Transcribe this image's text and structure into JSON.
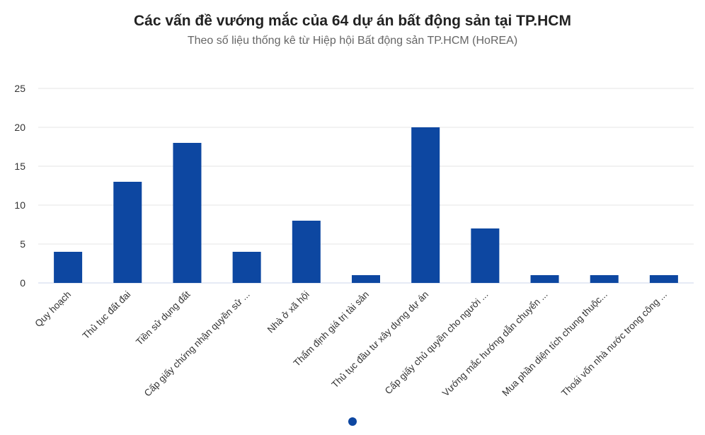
{
  "chart_data": {
    "type": "bar",
    "title": "Các vấn đề vướng mắc của 64 dự án bất động sản tại TP.HCM",
    "subtitle": "Theo số liệu thống kê từ Hiệp hội Bất động sản TP.HCM (HoREA)",
    "categories": [
      "Quy hoạch",
      "Thủ tục đất đai",
      "Tiền sử dụng đất",
      "Cấp giấy chứng nhận quyền sử ...",
      "Nhà ở xã hội",
      "Thẩm định giá trị tài sản",
      "Thủ tục đầu tư xây dựng dự án",
      "Cấp giấy chủ quyền cho người ...",
      "Vướng mắc hướng dẫn chuyển ...",
      "Mua phần diện tích chung thuộc...",
      "Thoái vốn nhà nước trong công ..."
    ],
    "values": [
      4,
      13,
      18,
      4,
      8,
      1,
      20,
      7,
      1,
      1,
      1
    ],
    "yticks": [
      0,
      5,
      10,
      15,
      20,
      25
    ],
    "ylim": [
      0,
      25
    ],
    "xlabel": "",
    "ylabel": "",
    "grid": true,
    "bar_color": "#0d47a1",
    "legend": "none"
  },
  "colors": {
    "bar": "#0d47a1",
    "grid": "#e6e6e6",
    "axis": "#ccd6eb",
    "pager_dot": "#0d47a1"
  }
}
